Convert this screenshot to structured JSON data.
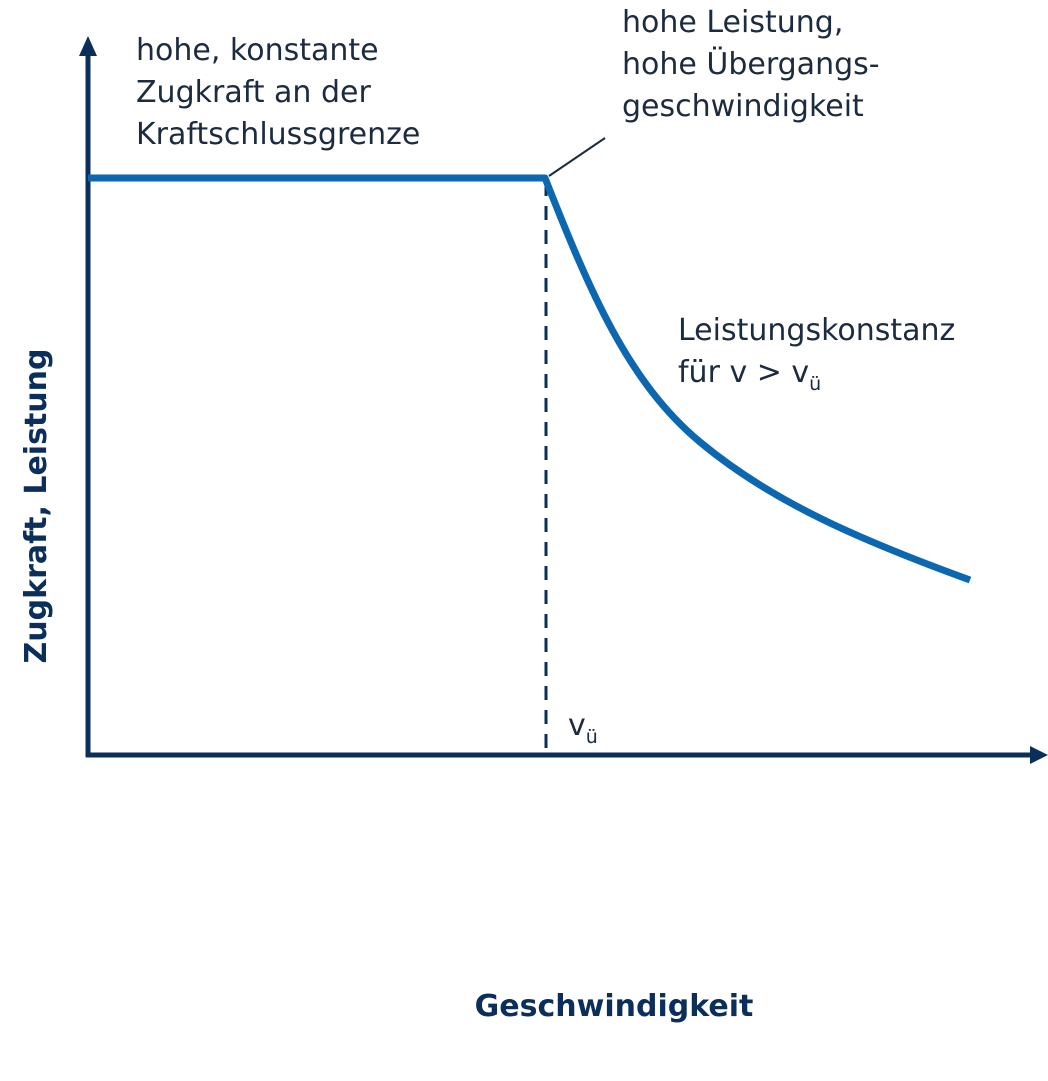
{
  "axes": {
    "y_label": "Zugkraft, Leistung",
    "x_label": "Geschwindigkeit"
  },
  "annotations": [
    {
      "lines": [
        "hohe, konstante",
        "Zugkraft an der",
        "Kraftschlussgrenze"
      ]
    },
    {
      "lines": [
        "hohe Leistung,",
        "hohe Übergangs-",
        "geschwindigkeit"
      ]
    },
    {
      "lines": [
        "Leistungskonstanz"
      ],
      "last_line": {
        "text": "für v > v",
        "subscript": "ü"
      }
    }
  ],
  "v_marker": {
    "symbol": "v",
    "subscript": "ü"
  }
}
